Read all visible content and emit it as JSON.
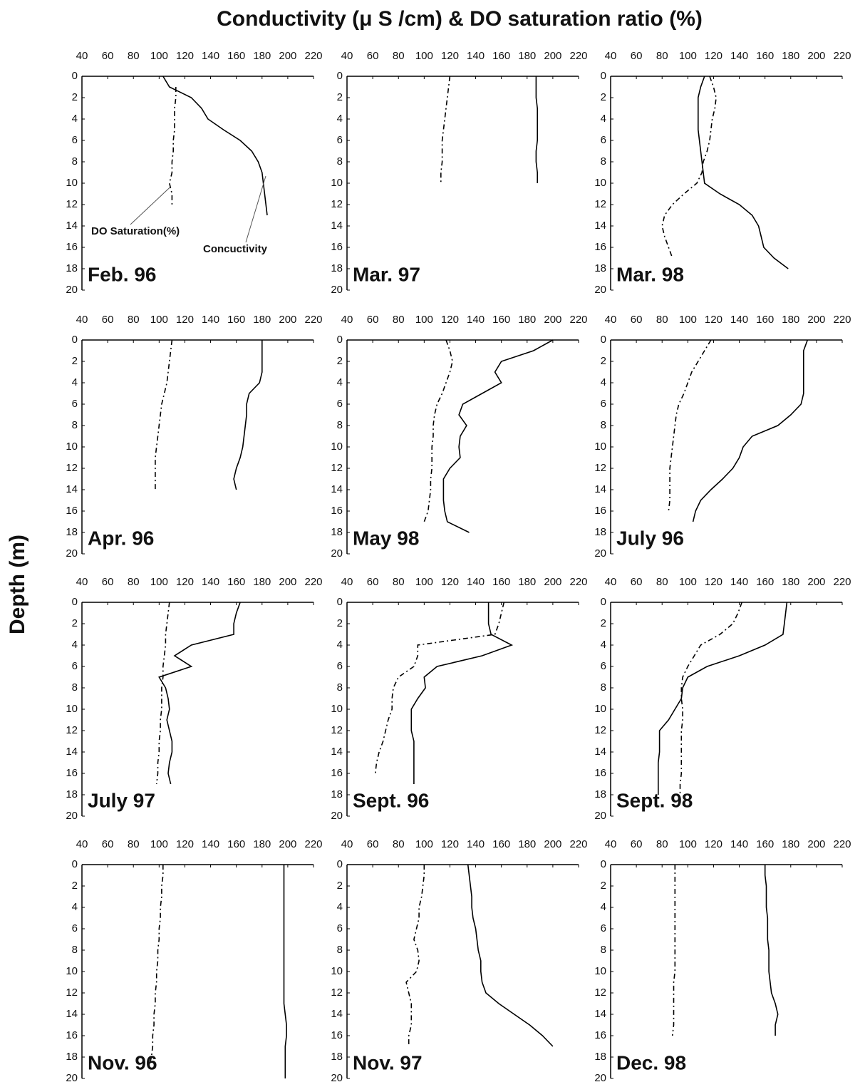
{
  "title": "Conductivity (μ S /cm)   &   DO saturation ratio (%)",
  "y_label": "Depth (m)",
  "chart_data": [
    {
      "type": "line",
      "orientation": "vertical",
      "label": "Feb. 96",
      "xlim": [
        40,
        220
      ],
      "xticks": [
        40,
        60,
        80,
        100,
        120,
        140,
        160,
        180,
        200,
        220
      ],
      "ylim": [
        0,
        20
      ],
      "yticks": [
        0,
        2,
        4,
        6,
        8,
        10,
        12,
        14,
        16,
        18,
        20
      ],
      "y_inverted": true,
      "depth": [
        0,
        1,
        2,
        3,
        4,
        5,
        6,
        7,
        8,
        9,
        10,
        11,
        12,
        13
      ],
      "series": [
        {
          "name": "Concuctivity",
          "color": "#000",
          "style": "solid",
          "values": [
            103,
            108,
            125,
            133,
            138,
            150,
            163,
            172,
            177,
            180,
            181,
            182,
            183,
            184
          ]
        },
        {
          "name": "DO Saturation(%)",
          "color": "#000",
          "style": "dashed",
          "values": [
            null,
            113,
            113,
            112,
            112,
            112,
            111,
            111,
            110,
            110,
            108,
            110,
            110,
            null
          ]
        }
      ]
    },
    {
      "type": "line",
      "orientation": "vertical",
      "label": "Mar. 97",
      "xlim": [
        40,
        220
      ],
      "xticks": [
        40,
        60,
        80,
        100,
        120,
        140,
        160,
        180,
        200,
        220
      ],
      "ylim": [
        0,
        20
      ],
      "yticks": [
        0,
        2,
        4,
        6,
        8,
        10,
        12,
        14,
        16,
        18,
        20
      ],
      "y_inverted": true,
      "depth": [
        0,
        1,
        2,
        3,
        4,
        5,
        6,
        7,
        8,
        9,
        10
      ],
      "series": [
        {
          "color": "#000",
          "style": "solid",
          "values": [
            187,
            187,
            187,
            188,
            188,
            188,
            188,
            187,
            187,
            188,
            188
          ]
        },
        {
          "color": "#000",
          "style": "dashed",
          "values": [
            120,
            119,
            118,
            117,
            116,
            115,
            114,
            114,
            114,
            113,
            113
          ]
        }
      ]
    },
    {
      "type": "line",
      "orientation": "vertical",
      "label": "Mar. 98",
      "xlim": [
        40,
        220
      ],
      "xticks": [
        40,
        60,
        80,
        100,
        120,
        140,
        160,
        180,
        200,
        220
      ],
      "ylim": [
        0,
        20
      ],
      "yticks": [
        0,
        2,
        4,
        6,
        8,
        10,
        12,
        14,
        16,
        18,
        20
      ],
      "y_inverted": true,
      "depth": [
        0,
        1,
        2,
        3,
        4,
        5,
        6,
        7,
        8,
        9,
        10,
        11,
        12,
        13,
        14,
        15,
        16,
        17,
        18
      ],
      "series": [
        {
          "color": "#000",
          "style": "solid",
          "values": [
            113,
            110,
            108,
            108,
            108,
            108,
            109,
            110,
            111,
            112,
            113,
            125,
            140,
            150,
            155,
            157,
            159,
            167,
            178
          ]
        },
        {
          "color": "#000",
          "style": "dashed",
          "values": [
            117,
            120,
            122,
            121,
            119,
            118,
            117,
            115,
            112,
            111,
            107,
            97,
            88,
            82,
            80,
            82,
            85,
            88,
            null
          ]
        }
      ]
    },
    {
      "type": "line",
      "orientation": "vertical",
      "label": "Apr. 96",
      "xlim": [
        40,
        220
      ],
      "xticks": [
        40,
        60,
        80,
        100,
        120,
        140,
        160,
        180,
        200,
        220
      ],
      "ylim": [
        0,
        20
      ],
      "yticks": [
        0,
        2,
        4,
        6,
        8,
        10,
        12,
        14,
        16,
        18,
        20
      ],
      "y_inverted": true,
      "depth": [
        0,
        1,
        2,
        3,
        4,
        5,
        6,
        7,
        8,
        9,
        10,
        11,
        12,
        13,
        14
      ],
      "series": [
        {
          "color": "#000",
          "style": "solid",
          "values": [
            180,
            180,
            180,
            180,
            178,
            170,
            168,
            168,
            167,
            166,
            165,
            163,
            160,
            158,
            160
          ]
        },
        {
          "color": "#000",
          "style": "dashed",
          "values": [
            110,
            109,
            108,
            107,
            106,
            104,
            102,
            101,
            100,
            99,
            98,
            97,
            97,
            97,
            97
          ]
        }
      ]
    },
    {
      "type": "line",
      "orientation": "vertical",
      "label": "May 98",
      "xlim": [
        40,
        220
      ],
      "xticks": [
        40,
        60,
        80,
        100,
        120,
        140,
        160,
        180,
        200,
        220
      ],
      "ylim": [
        0,
        20
      ],
      "yticks": [
        0,
        2,
        4,
        6,
        8,
        10,
        12,
        14,
        16,
        18,
        20
      ],
      "y_inverted": true,
      "depth": [
        0,
        1,
        2,
        3,
        4,
        5,
        6,
        7,
        8,
        9,
        10,
        11,
        12,
        13,
        14,
        15,
        16,
        17,
        18
      ],
      "series": [
        {
          "color": "#000",
          "style": "solid",
          "values": [
            200,
            185,
            160,
            155,
            160,
            145,
            130,
            127,
            133,
            128,
            127,
            128,
            120,
            115,
            115,
            115,
            116,
            118,
            135
          ]
        },
        {
          "color": "#000",
          "style": "dashed",
          "values": [
            117,
            120,
            122,
            120,
            117,
            114,
            110,
            108,
            107,
            107,
            106,
            106,
            106,
            105,
            105,
            104,
            103,
            100,
            null
          ]
        }
      ]
    },
    {
      "type": "line",
      "orientation": "vertical",
      "label": "July 96",
      "xlim": [
        40,
        220
      ],
      "xticks": [
        40,
        60,
        80,
        100,
        120,
        140,
        160,
        180,
        200,
        220
      ],
      "ylim": [
        0,
        20
      ],
      "yticks": [
        0,
        2,
        4,
        6,
        8,
        10,
        12,
        14,
        16,
        18,
        20
      ],
      "y_inverted": true,
      "depth": [
        0,
        1,
        2,
        3,
        4,
        5,
        6,
        7,
        8,
        9,
        10,
        11,
        12,
        13,
        14,
        15,
        16,
        17
      ],
      "series": [
        {
          "color": "#000",
          "style": "solid",
          "values": [
            193,
            190,
            190,
            190,
            190,
            190,
            188,
            180,
            170,
            150,
            143,
            140,
            135,
            127,
            118,
            110,
            106,
            104
          ]
        },
        {
          "color": "#000",
          "style": "dashed",
          "values": [
            118,
            113,
            108,
            103,
            100,
            97,
            93,
            91,
            90,
            89,
            88,
            87,
            86,
            86,
            86,
            86,
            85,
            null
          ]
        }
      ]
    },
    {
      "type": "line",
      "orientation": "vertical",
      "label": "July 97",
      "xlim": [
        40,
        220
      ],
      "xticks": [
        40,
        60,
        80,
        100,
        120,
        140,
        160,
        180,
        200,
        220
      ],
      "ylim": [
        0,
        20
      ],
      "yticks": [
        0,
        2,
        4,
        6,
        8,
        10,
        12,
        14,
        16,
        18,
        20
      ],
      "y_inverted": true,
      "depth": [
        0,
        1,
        2,
        3,
        4,
        5,
        6,
        7,
        8,
        9,
        10,
        11,
        12,
        13,
        14,
        15,
        16,
        17
      ],
      "series": [
        {
          "color": "#000",
          "style": "solid",
          "values": [
            163,
            160,
            158,
            158,
            125,
            112,
            125,
            100,
            105,
            107,
            108,
            106,
            108,
            110,
            110,
            108,
            107,
            109
          ]
        },
        {
          "color": "#000",
          "style": "dashed",
          "values": [
            108,
            107,
            106,
            105,
            105,
            104,
            103,
            103,
            102,
            102,
            102,
            101,
            101,
            100,
            100,
            99,
            99,
            98
          ]
        }
      ]
    },
    {
      "type": "line",
      "orientation": "vertical",
      "label": "Sept. 96",
      "xlim": [
        40,
        220
      ],
      "xticks": [
        40,
        60,
        80,
        100,
        120,
        140,
        160,
        180,
        200,
        220
      ],
      "ylim": [
        0,
        20
      ],
      "yticks": [
        0,
        2,
        4,
        6,
        8,
        10,
        12,
        14,
        16,
        18,
        20
      ],
      "y_inverted": true,
      "depth": [
        0,
        1,
        2,
        3,
        4,
        5,
        6,
        7,
        8,
        9,
        10,
        11,
        12,
        13,
        14,
        15,
        16,
        17
      ],
      "series": [
        {
          "color": "#000",
          "style": "solid",
          "values": [
            150,
            150,
            150,
            152,
            168,
            145,
            110,
            100,
            101,
            95,
            90,
            90,
            90,
            92,
            92,
            92,
            92,
            92
          ]
        },
        {
          "color": "#000",
          "style": "dashed",
          "values": [
            162,
            160,
            158,
            155,
            95,
            95,
            92,
            80,
            76,
            75,
            75,
            72,
            70,
            68,
            65,
            63,
            62,
            null
          ]
        }
      ]
    },
    {
      "type": "line",
      "orientation": "vertical",
      "label": "Sept. 98",
      "xlim": [
        40,
        220
      ],
      "xticks": [
        40,
        60,
        80,
        100,
        120,
        140,
        160,
        180,
        200,
        220
      ],
      "ylim": [
        0,
        20
      ],
      "yticks": [
        0,
        2,
        4,
        6,
        8,
        10,
        12,
        14,
        16,
        18,
        20
      ],
      "y_inverted": true,
      "depth": [
        0,
        1,
        2,
        3,
        4,
        5,
        6,
        7,
        8,
        9,
        10,
        11,
        12,
        13,
        14,
        15,
        16,
        17,
        18
      ],
      "series": [
        {
          "color": "#000",
          "style": "solid",
          "values": [
            177,
            176,
            175,
            174,
            160,
            140,
            115,
            100,
            96,
            95,
            90,
            85,
            78,
            78,
            78,
            77,
            77,
            77,
            77
          ]
        },
        {
          "color": "#000",
          "style": "dashed",
          "values": [
            142,
            139,
            135,
            125,
            110,
            105,
            100,
            96,
            95,
            95,
            96,
            96,
            95,
            95,
            95,
            95,
            95,
            94,
            94
          ]
        }
      ]
    },
    {
      "type": "line",
      "orientation": "vertical",
      "label": "Nov. 96",
      "xlim": [
        40,
        220
      ],
      "xticks": [
        40,
        60,
        80,
        100,
        120,
        140,
        160,
        180,
        200,
        220
      ],
      "ylim": [
        0,
        20
      ],
      "yticks": [
        0,
        2,
        4,
        6,
        8,
        10,
        12,
        14,
        16,
        18,
        20
      ],
      "y_inverted": true,
      "depth": [
        0,
        1,
        2,
        3,
        4,
        5,
        6,
        7,
        8,
        9,
        10,
        11,
        12,
        13,
        14,
        15,
        16,
        17,
        18,
        19,
        20
      ],
      "series": [
        {
          "color": "#000",
          "style": "solid",
          "values": [
            197,
            197,
            197,
            197,
            197,
            197,
            197,
            197,
            197,
            197,
            197,
            197,
            197,
            197,
            198,
            199,
            199,
            198,
            198,
            198,
            198
          ]
        },
        {
          "color": "#000",
          "style": "dashed",
          "values": [
            103,
            103,
            102,
            102,
            101,
            101,
            100,
            100,
            99,
            99,
            98,
            98,
            97,
            97,
            96,
            96,
            95,
            95,
            94,
            92,
            null
          ]
        }
      ]
    },
    {
      "type": "line",
      "orientation": "vertical",
      "label": "Nov. 97",
      "xlim": [
        40,
        220
      ],
      "xticks": [
        40,
        60,
        80,
        100,
        120,
        140,
        160,
        180,
        200,
        220
      ],
      "ylim": [
        0,
        20
      ],
      "yticks": [
        0,
        2,
        4,
        6,
        8,
        10,
        12,
        14,
        16,
        18,
        20
      ],
      "y_inverted": true,
      "depth": [
        0,
        1,
        2,
        3,
        4,
        5,
        6,
        7,
        8,
        9,
        10,
        11,
        12,
        13,
        14,
        15,
        16,
        17
      ],
      "series": [
        {
          "color": "#000",
          "style": "solid",
          "values": [
            134,
            135,
            136,
            137,
            137,
            138,
            140,
            141,
            142,
            144,
            144,
            145,
            148,
            158,
            170,
            182,
            192,
            200
          ]
        },
        {
          "color": "#000",
          "style": "dashed",
          "values": [
            100,
            100,
            99,
            98,
            96,
            96,
            94,
            92,
            95,
            96,
            94,
            86,
            88,
            90,
            90,
            90,
            88,
            88
          ]
        }
      ]
    },
    {
      "type": "line",
      "orientation": "vertical",
      "label": "Dec. 98",
      "xlim": [
        40,
        220
      ],
      "xticks": [
        40,
        60,
        80,
        100,
        120,
        140,
        160,
        180,
        200,
        220
      ],
      "ylim": [
        0,
        20
      ],
      "yticks": [
        0,
        2,
        4,
        6,
        8,
        10,
        12,
        14,
        16,
        18,
        20
      ],
      "y_inverted": true,
      "depth": [
        0,
        1,
        2,
        3,
        4,
        5,
        6,
        7,
        8,
        9,
        10,
        11,
        12,
        13,
        14,
        15,
        16
      ],
      "series": [
        {
          "color": "#000",
          "style": "solid",
          "values": [
            160,
            160,
            161,
            161,
            161,
            162,
            162,
            162,
            163,
            163,
            163,
            164,
            165,
            168,
            170,
            168,
            168
          ]
        },
        {
          "color": "#000",
          "style": "dashed",
          "values": [
            90,
            90,
            90,
            90,
            90,
            90,
            90,
            90,
            90,
            90,
            90,
            89,
            89,
            89,
            89,
            89,
            88
          ]
        }
      ]
    }
  ]
}
